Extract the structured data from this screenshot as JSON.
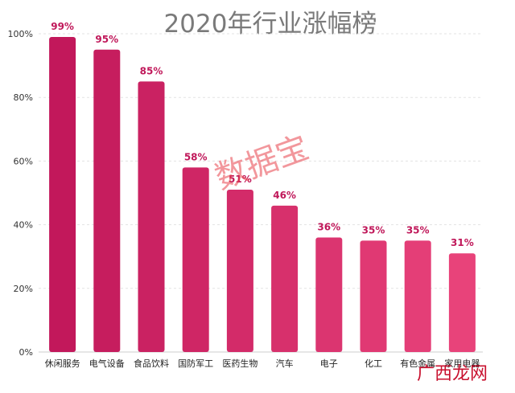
{
  "chart_data": {
    "type": "bar",
    "title": "2020年行业涨幅榜",
    "categories": [
      "休闲服务",
      "电气设备",
      "食品饮料",
      "国防军工",
      "医药生物",
      "汽车",
      "电子",
      "化工",
      "有色金属",
      "家用电器"
    ],
    "values": [
      99,
      95,
      85,
      58,
      51,
      46,
      36,
      35,
      35,
      31
    ],
    "value_labels": [
      "99%",
      "95%",
      "85%",
      "58%",
      "51%",
      "46%",
      "36%",
      "35%",
      "35%",
      "31%"
    ],
    "y_ticks": [
      0,
      20,
      40,
      60,
      80,
      100
    ],
    "y_tick_labels": [
      "0%",
      "20%",
      "40%",
      "60%",
      "80%",
      "100%"
    ],
    "ylim": [
      0,
      100
    ],
    "grid": true,
    "bar_color_start": "#c2185b",
    "bar_color_end": "#e8437a",
    "label_color": "#c0185a"
  },
  "watermark": "数据宝",
  "corner_logo": "广西龙网"
}
